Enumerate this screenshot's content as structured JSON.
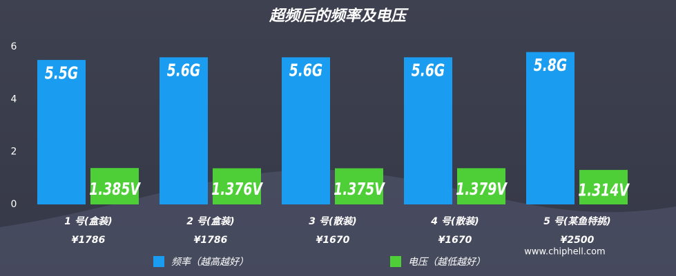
{
  "chart_data": {
    "type": "bar",
    "title": "超频后的频率及电压",
    "categories": [
      [
        "1 号(盒装)",
        "¥1786"
      ],
      [
        "2 号(盒装)",
        "¥1786"
      ],
      [
        "3 号(散装)",
        "¥1670"
      ],
      [
        "4 号(散装)",
        "¥1670"
      ],
      [
        "5 号(某鱼特挑)",
        "¥2500"
      ]
    ],
    "series": [
      {
        "name": "频率（越高越好）",
        "color": "#1a9cf0",
        "values": [
          5.5,
          5.6,
          5.6,
          5.6,
          5.8
        ],
        "value_labels": [
          "5.5G",
          "5.6G",
          "5.6G",
          "5.6G",
          "5.8G"
        ]
      },
      {
        "name": "电压（越低越好）",
        "color": "#4fcf37",
        "values": [
          1.385,
          1.376,
          1.375,
          1.379,
          1.314
        ],
        "value_labels": [
          "1.385V",
          "1.376V",
          "1.375V",
          "1.379V",
          "1.314V"
        ]
      }
    ],
    "ylim": [
      0,
      6
    ],
    "yticks": [
      0,
      2,
      4,
      6
    ],
    "grid": false,
    "watermark": "www.chiphell.com"
  }
}
